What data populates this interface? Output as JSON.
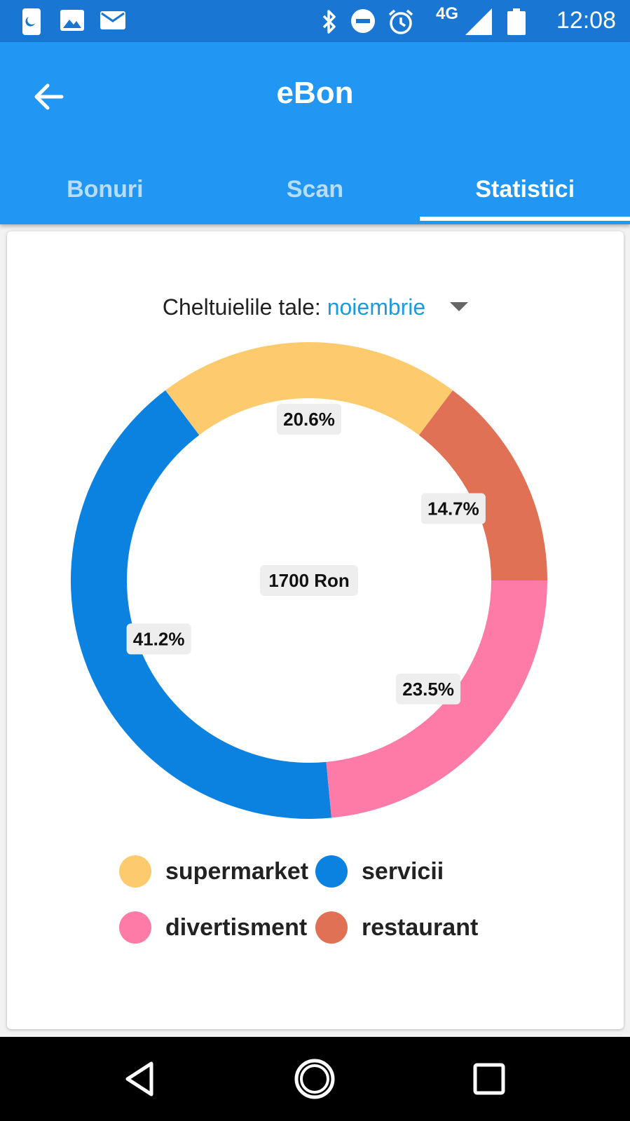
{
  "status_bar": {
    "time": "12:08",
    "network": "4G",
    "icons": [
      "phone-app-icon",
      "image-notification-icon",
      "mail-notification-icon",
      "bluetooth-icon",
      "do-not-disturb-icon",
      "alarm-icon",
      "signal-icon",
      "battery-icon"
    ]
  },
  "app_bar": {
    "title": "eBon",
    "tabs": [
      {
        "label": "Bonuri",
        "active": false
      },
      {
        "label": "Scan",
        "active": false
      },
      {
        "label": "Statistici",
        "active": true
      }
    ]
  },
  "selector": {
    "prefix": "Cheltuielile tale:",
    "month": "noiembrie"
  },
  "chart_data": {
    "type": "pie",
    "variant": "donut",
    "center_label": "1700 Ron",
    "slices": [
      {
        "label": "restaurant",
        "value": 14.7,
        "text": "14.7%",
        "color": "#e07155"
      },
      {
        "label": "supermarket",
        "value": 20.6,
        "text": "20.6%",
        "color": "#fdcb6e"
      },
      {
        "label": "servicii",
        "value": 41.2,
        "text": "41.2%",
        "color": "#0b82e0"
      },
      {
        "label": "divertisment",
        "value": 23.5,
        "text": "23.5%",
        "color": "#fe7ba8"
      }
    ],
    "legend": [
      {
        "label": "supermarket",
        "color": "#fdcb6e"
      },
      {
        "label": "servicii",
        "color": "#0b82e0"
      },
      {
        "label": "divertisment",
        "color": "#fe7ba8"
      },
      {
        "label": "restaurant",
        "color": "#e07155"
      }
    ],
    "legend_position": "bottom"
  },
  "nav_bar": {
    "buttons": [
      "back-triangle-icon",
      "home-circle-icon",
      "recents-square-icon"
    ]
  },
  "colors": {
    "status_bar": "#1976d2",
    "app_bar": "#2196f3",
    "accent": "#1e9be0"
  }
}
